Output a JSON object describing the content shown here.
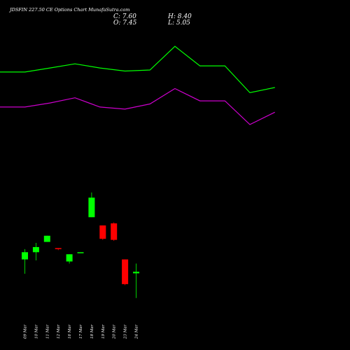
{
  "header": {
    "title": "JDSFIN 227.50 CE Options  Chart MunafaSutra.com",
    "close_label": "C: 7.60",
    "high_label": "H: 8.40",
    "open_label": "O: 7.45",
    "low_label": "L: 5.05"
  },
  "colors": {
    "background": "#000000",
    "up": "#00ff00",
    "down": "#ff0000",
    "upper_band": "#00ff00",
    "lower_band": "#cc00cc"
  },
  "chart_data": {
    "type": "candlestick",
    "title": "JDSFIN 227.50 CE Options  Chart MunafaSutra.com",
    "ylim": [
      0,
      34
    ],
    "candles": [
      {
        "date": "09 Mar",
        "open": 8.8,
        "high": 9.8,
        "low": 7.4,
        "close": 9.5
      },
      {
        "date": "10 Mar",
        "open": 9.5,
        "high": 10.4,
        "low": 8.7,
        "close": 10.0
      },
      {
        "date": "11 Mar",
        "open": 10.5,
        "high": 11.1,
        "low": 10.5,
        "close": 11.1
      },
      {
        "date": "12 Mar",
        "open": 9.9,
        "high": 9.9,
        "low": 9.7,
        "close": 9.8
      },
      {
        "date": "16 Mar",
        "open": 8.6,
        "high": 9.3,
        "low": 8.4,
        "close": 9.3
      },
      {
        "date": "17 Mar",
        "open": 9.5,
        "high": 9.5,
        "low": 9.5,
        "close": 9.5
      },
      {
        "date": "18 Mar",
        "open": 12.9,
        "high": 15.3,
        "low": 12.9,
        "close": 14.8
      },
      {
        "date": "19 Mar",
        "open": 12.1,
        "high": 12.1,
        "low": 10.7,
        "close": 10.8
      },
      {
        "date": "20 Mar",
        "open": 12.3,
        "high": 12.4,
        "low": 10.6,
        "close": 10.7
      },
      {
        "date": "23 Mar",
        "open": 8.8,
        "high": 8.8,
        "low": 6.3,
        "close": 6.4
      },
      {
        "date": "24 Mar",
        "open": 7.45,
        "high": 8.4,
        "low": 5.05,
        "close": 7.6
      }
    ],
    "upper_band": [
      {
        "x": "08 Mar",
        "y": 27.0
      },
      {
        "x": "09 Mar",
        "y": 27.0
      },
      {
        "x": "10 Mar",
        "y": 27.4
      },
      {
        "x": "11 Mar",
        "y": 27.8
      },
      {
        "x": "12 Mar",
        "y": 27.4
      },
      {
        "x": "16 Mar",
        "y": 27.1
      },
      {
        "x": "17 Mar",
        "y": 27.2
      },
      {
        "x": "18 Mar",
        "y": 29.5
      },
      {
        "x": "19 Mar",
        "y": 27.6
      },
      {
        "x": "20 Mar",
        "y": 27.6
      },
      {
        "x": "23 Mar",
        "y": 25.0
      },
      {
        "x": "24 Mar",
        "y": 25.5
      }
    ],
    "lower_band": [
      {
        "x": "08 Mar",
        "y": 23.6
      },
      {
        "x": "09 Mar",
        "y": 23.6
      },
      {
        "x": "10 Mar",
        "y": 24.0
      },
      {
        "x": "11 Mar",
        "y": 24.5
      },
      {
        "x": "12 Mar",
        "y": 23.6
      },
      {
        "x": "16 Mar",
        "y": 23.4
      },
      {
        "x": "17 Mar",
        "y": 23.9
      },
      {
        "x": "18 Mar",
        "y": 25.4
      },
      {
        "x": "19 Mar",
        "y": 24.2
      },
      {
        "x": "20 Mar",
        "y": 24.2
      },
      {
        "x": "23 Mar",
        "y": 21.9
      },
      {
        "x": "24 Mar",
        "y": 23.1
      }
    ]
  }
}
